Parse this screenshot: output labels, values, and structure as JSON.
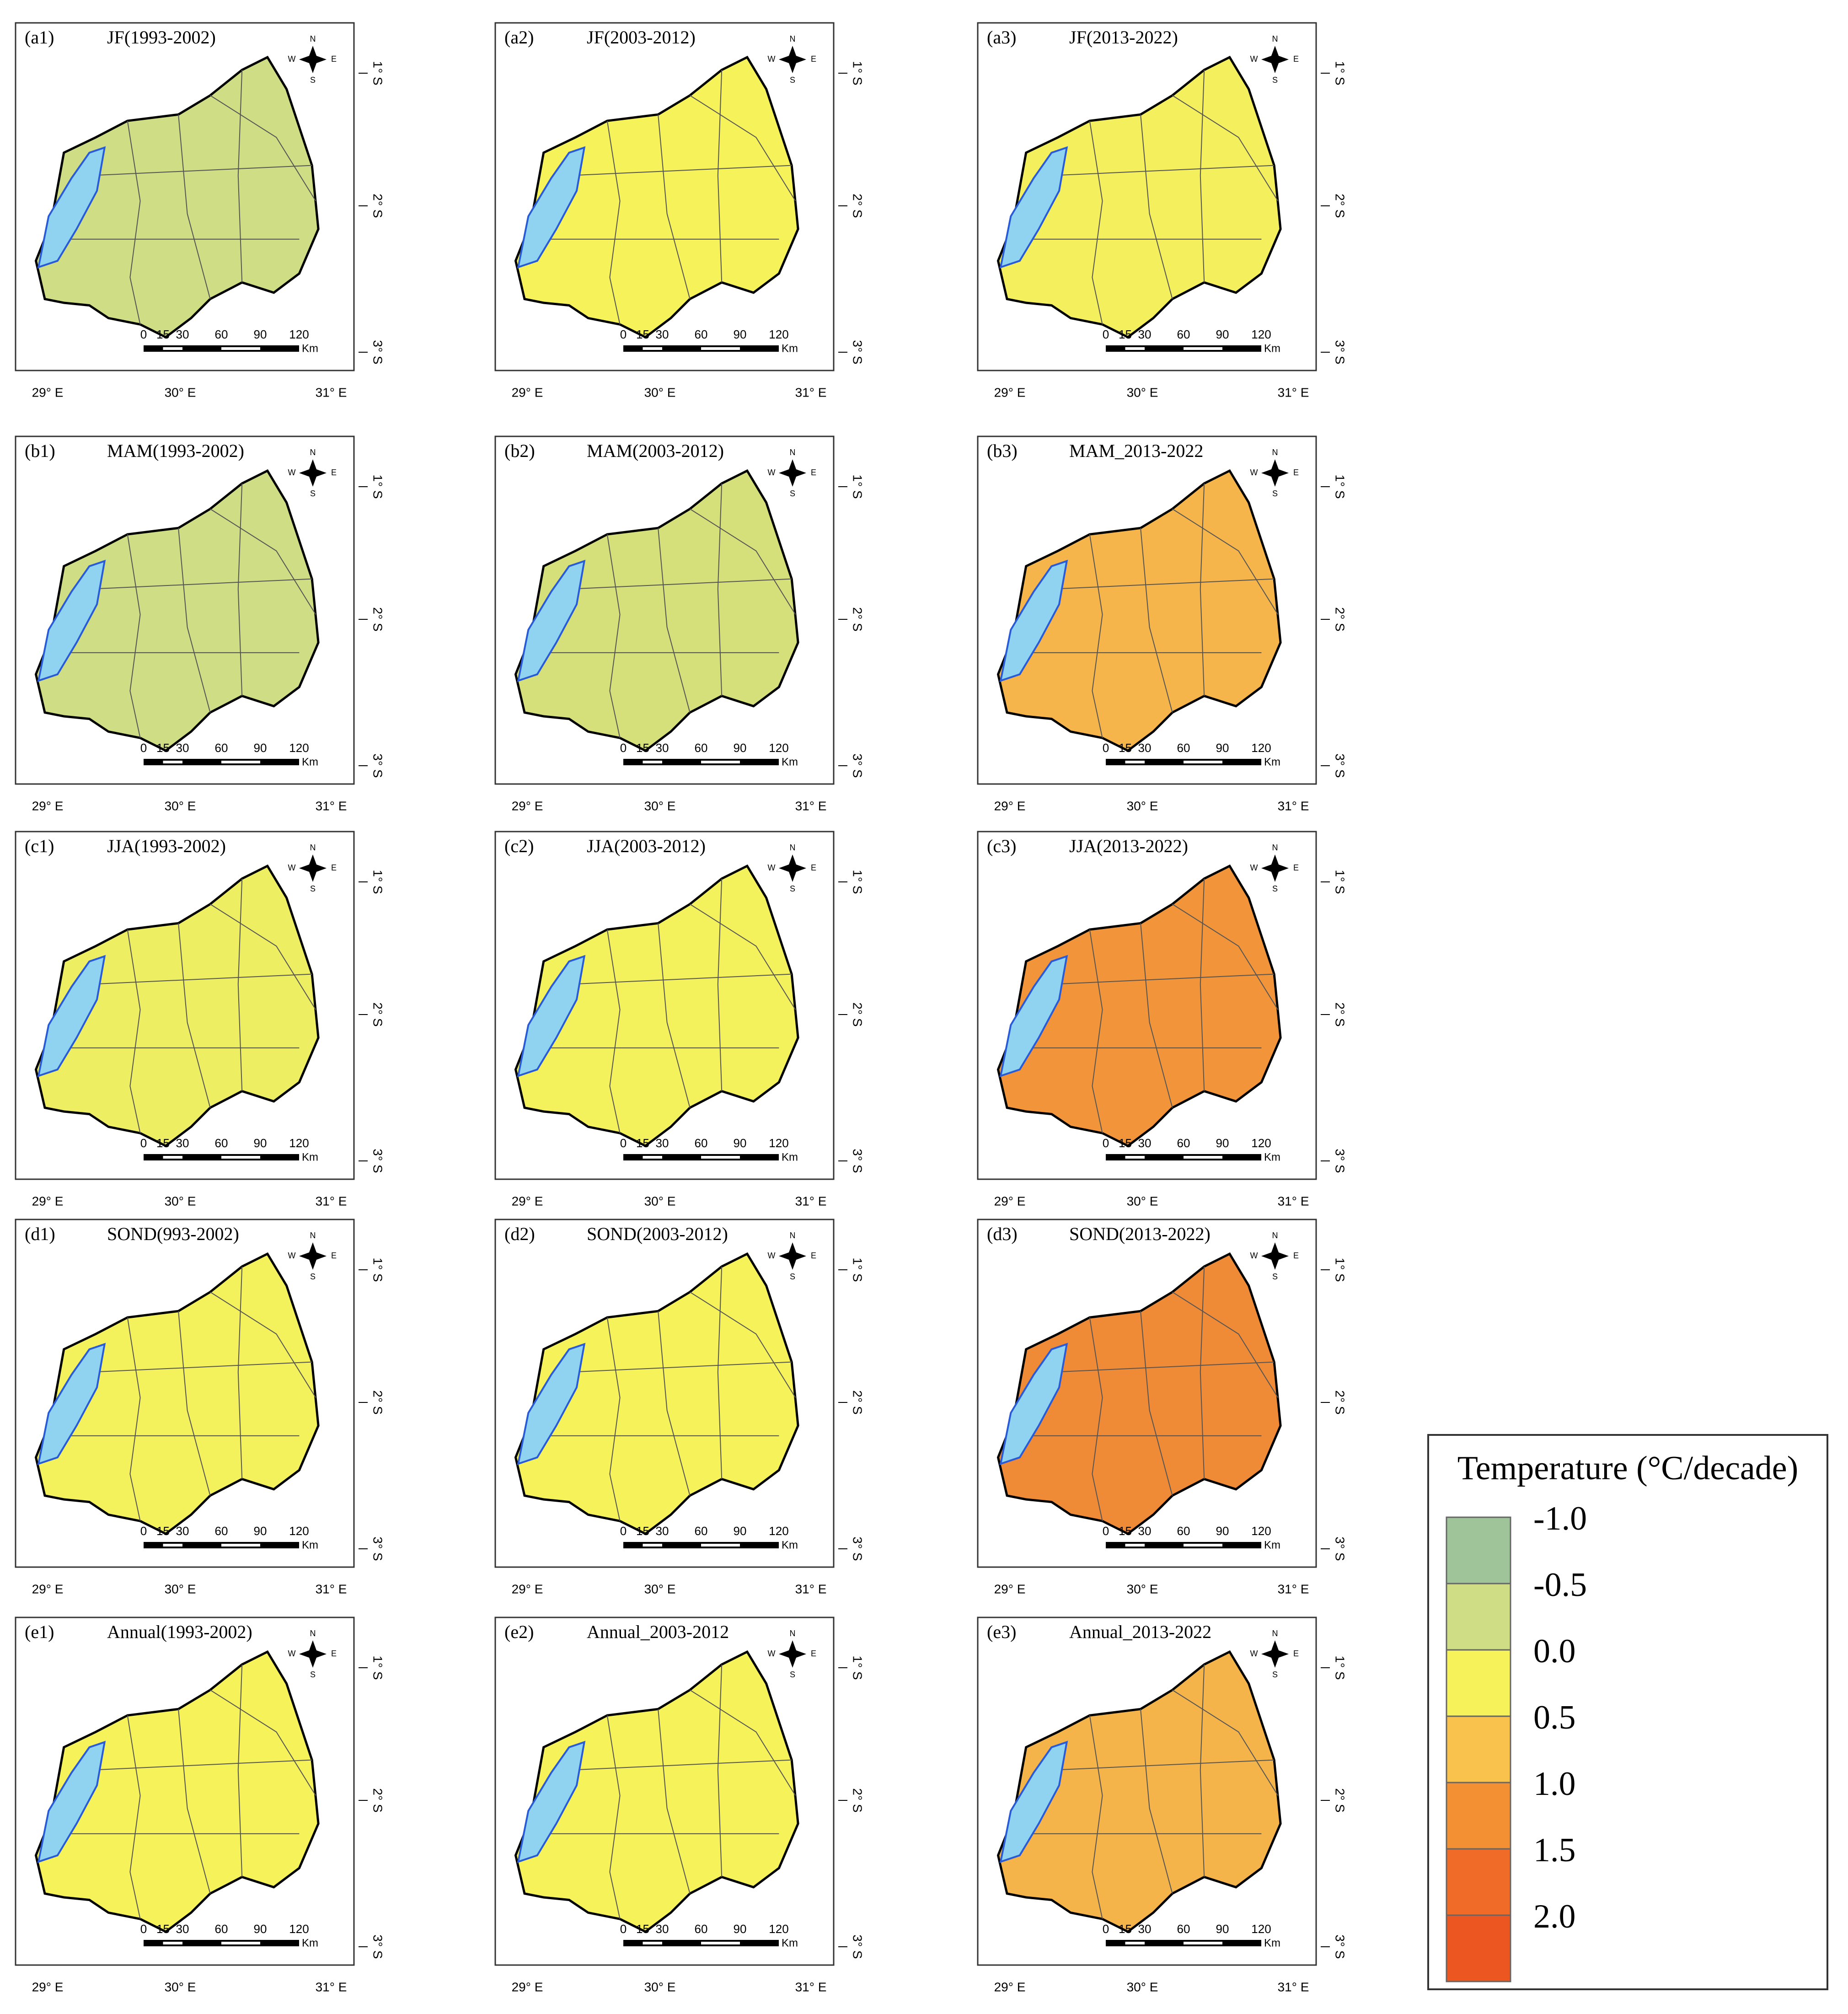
{
  "lon_labels": [
    "29° E",
    "30° E",
    "31° E"
  ],
  "lat_labels": [
    "1° S",
    "2° S",
    "3° S"
  ],
  "scale_labels": [
    "0",
    "15",
    "30",
    "60",
    "90",
    "120",
    "Km"
  ],
  "compass": [
    "N",
    "W",
    "E",
    "S"
  ],
  "panels": [
    {
      "label": "(a1)",
      "title": "JF(1993-2002)",
      "fill": "#cfdd84"
    },
    {
      "label": "(a2)",
      "title": "JF(2003-2012)",
      "fill": "#f6f25a"
    },
    {
      "label": "(a3)",
      "title": "JF(2013-2022)",
      "fill": "#f4ef5c"
    },
    {
      "label": "(b1)",
      "title": "MAM(1993-2002)",
      "fill": "#cfdd84"
    },
    {
      "label": "(b2)",
      "title": "MAM(2003-2012)",
      "fill": "#d6e07a"
    },
    {
      "label": "(b3)",
      "title": "MAM_2013-2022",
      "fill": "#f6b54a"
    },
    {
      "label": "(c1)",
      "title": "JJA(1993-2002)",
      "fill": "#eeee62"
    },
    {
      "label": "(c2)",
      "title": "JJA(2003-2012)",
      "fill": "#f4f25c"
    },
    {
      "label": "(c3)",
      "title": "JJA(2013-2022)",
      "fill": "#f2953a"
    },
    {
      "label": "(d1)",
      "title": "SOND(993-2002)",
      "fill": "#f4f25c"
    },
    {
      "label": "(d2)",
      "title": "SOND(2003-2012)",
      "fill": "#f6f25a"
    },
    {
      "label": "(d3)",
      "title": "SOND(2013-2022)",
      "fill": "#ef8a36"
    },
    {
      "label": "(e1)",
      "title": "Annual(1993-2002)",
      "fill": "#f6f25a"
    },
    {
      "label": "(e2)",
      "title": "Annual_2003-2012",
      "fill": "#f6f25a"
    },
    {
      "label": "(e3)",
      "title": "Annual_2013-2022",
      "fill": "#f4b44a"
    }
  ],
  "legend": {
    "title": "Temperature (°C/decade)",
    "items": [
      {
        "label": "-1.0",
        "color": "#a0c49a"
      },
      {
        "label": "-0.5",
        "color": "#cfdd84"
      },
      {
        "label": "0.0",
        "color": "#f6f25a"
      },
      {
        "label": "0.5",
        "color": "#f8c24c"
      },
      {
        "label": "1.0",
        "color": "#f39033"
      },
      {
        "label": "1.5",
        "color": "#f06a28"
      },
      {
        "label": "2.0",
        "color": "#ec5621"
      }
    ]
  }
}
